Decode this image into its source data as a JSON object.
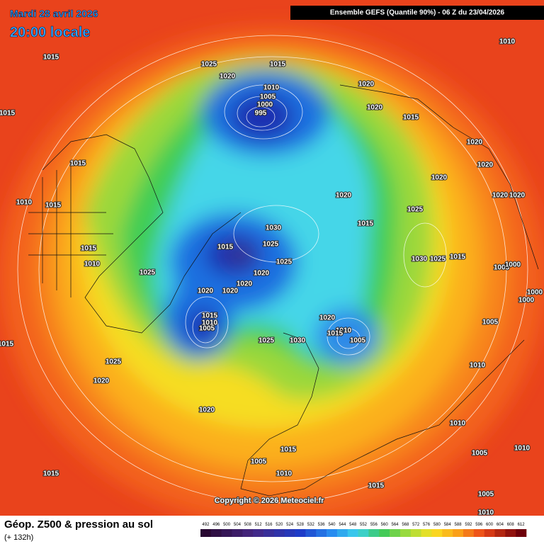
{
  "header": {
    "date": "Mardi 28 avril 2026",
    "time": "20:00 locale",
    "model": "Ensemble GEFS  (Quantile 90%) - 06 Z du 23/04/2026"
  },
  "isobar_labels": [
    1015,
    1025,
    1015,
    1010,
    1020,
    1010,
    1020,
    1005,
    1000,
    995,
    1015,
    1020,
    1015,
    1020,
    1015,
    1020,
    1020,
    1020,
    1020,
    1020,
    1010,
    1015,
    1025,
    1015,
    1030,
    1025,
    1015,
    1015,
    1030,
    1025,
    1015,
    1010,
    1025,
    1005,
    1000,
    1025,
    1020,
    1020,
    1020,
    1020,
    1000,
    1000,
    1020,
    1015,
    1010,
    1005,
    1005,
    1010,
    1015,
    1005,
    1015,
    1025,
    1030,
    1025,
    1010,
    1020,
    1020,
    1010,
    1005,
    1010,
    1015,
    1005,
    1015,
    1010,
    1015,
    1005,
    1010
  ],
  "copyright": "Copyright © 2026 Meteociel.fr",
  "footer": {
    "title": "Géop. Z500 & pression au sol",
    "lead_time": "(+ 132h)"
  },
  "color_scale": [
    492,
    496,
    500,
    504,
    508,
    512,
    516,
    520,
    524,
    528,
    532,
    536,
    540,
    544,
    548,
    552,
    556,
    560,
    564,
    568,
    572,
    576,
    580,
    584,
    588,
    592,
    596,
    600,
    604,
    608,
    612
  ]
}
